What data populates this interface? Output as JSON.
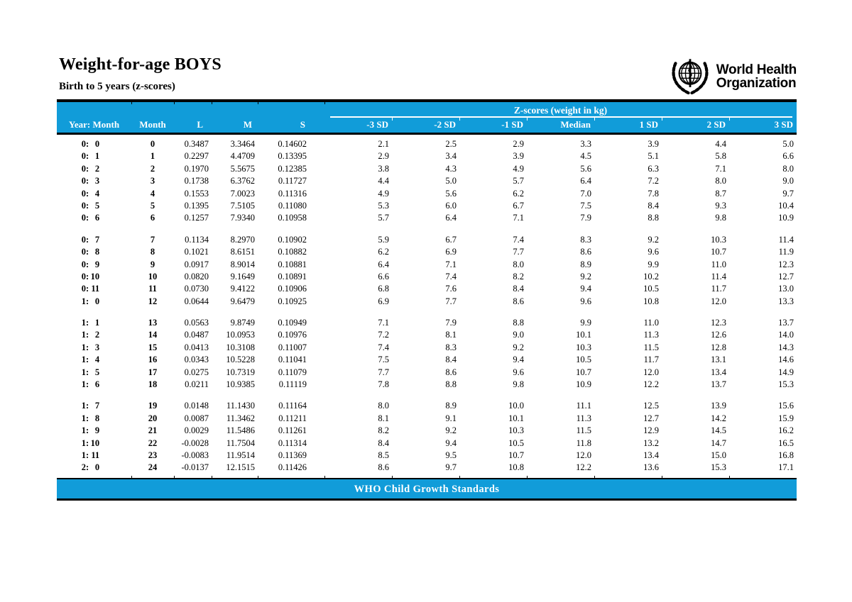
{
  "header": {
    "title": "Weight-for-age BOYS",
    "subtitle": "Birth to 5 years (z-scores)",
    "logo": {
      "line1": "World Health",
      "line2": "Organization"
    }
  },
  "table": {
    "group_header": "Z-scores (weight in kg)",
    "columns": [
      "Year: Month",
      "Month",
      "L",
      "M",
      "S",
      "-3 SD",
      "-2 SD",
      "-1 SD",
      "Median",
      "1 SD",
      "2 SD",
      "3 SD"
    ],
    "row_groups": [
      [
        [
          "0: 0",
          "0",
          "0.3487",
          "3.3464",
          "0.14602",
          "2.1",
          "2.5",
          "2.9",
          "3.3",
          "3.9",
          "4.4",
          "5.0"
        ],
        [
          "0: 1",
          "1",
          "0.2297",
          "4.4709",
          "0.13395",
          "2.9",
          "3.4",
          "3.9",
          "4.5",
          "5.1",
          "5.8",
          "6.6"
        ],
        [
          "0: 2",
          "2",
          "0.1970",
          "5.5675",
          "0.12385",
          "3.8",
          "4.3",
          "4.9",
          "5.6",
          "6.3",
          "7.1",
          "8.0"
        ],
        [
          "0: 3",
          "3",
          "0.1738",
          "6.3762",
          "0.11727",
          "4.4",
          "5.0",
          "5.7",
          "6.4",
          "7.2",
          "8.0",
          "9.0"
        ],
        [
          "0: 4",
          "4",
          "0.1553",
          "7.0023",
          "0.11316",
          "4.9",
          "5.6",
          "6.2",
          "7.0",
          "7.8",
          "8.7",
          "9.7"
        ],
        [
          "0: 5",
          "5",
          "0.1395",
          "7.5105",
          "0.11080",
          "5.3",
          "6.0",
          "6.7",
          "7.5",
          "8.4",
          "9.3",
          "10.4"
        ],
        [
          "0: 6",
          "6",
          "0.1257",
          "7.9340",
          "0.10958",
          "5.7",
          "6.4",
          "7.1",
          "7.9",
          "8.8",
          "9.8",
          "10.9"
        ]
      ],
      [
        [
          "0: 7",
          "7",
          "0.1134",
          "8.2970",
          "0.10902",
          "5.9",
          "6.7",
          "7.4",
          "8.3",
          "9.2",
          "10.3",
          "11.4"
        ],
        [
          "0: 8",
          "8",
          "0.1021",
          "8.6151",
          "0.10882",
          "6.2",
          "6.9",
          "7.7",
          "8.6",
          "9.6",
          "10.7",
          "11.9"
        ],
        [
          "0: 9",
          "9",
          "0.0917",
          "8.9014",
          "0.10881",
          "6.4",
          "7.1",
          "8.0",
          "8.9",
          "9.9",
          "11.0",
          "12.3"
        ],
        [
          "0:10",
          "10",
          "0.0820",
          "9.1649",
          "0.10891",
          "6.6",
          "7.4",
          "8.2",
          "9.2",
          "10.2",
          "11.4",
          "12.7"
        ],
        [
          "0:11",
          "11",
          "0.0730",
          "9.4122",
          "0.10906",
          "6.8",
          "7.6",
          "8.4",
          "9.4",
          "10.5",
          "11.7",
          "13.0"
        ],
        [
          "1: 0",
          "12",
          "0.0644",
          "9.6479",
          "0.10925",
          "6.9",
          "7.7",
          "8.6",
          "9.6",
          "10.8",
          "12.0",
          "13.3"
        ]
      ],
      [
        [
          "1: 1",
          "13",
          "0.0563",
          "9.8749",
          "0.10949",
          "7.1",
          "7.9",
          "8.8",
          "9.9",
          "11.0",
          "12.3",
          "13.7"
        ],
        [
          "1: 2",
          "14",
          "0.0487",
          "10.0953",
          "0.10976",
          "7.2",
          "8.1",
          "9.0",
          "10.1",
          "11.3",
          "12.6",
          "14.0"
        ],
        [
          "1: 3",
          "15",
          "0.0413",
          "10.3108",
          "0.11007",
          "7.4",
          "8.3",
          "9.2",
          "10.3",
          "11.5",
          "12.8",
          "14.3"
        ],
        [
          "1: 4",
          "16",
          "0.0343",
          "10.5228",
          "0.11041",
          "7.5",
          "8.4",
          "9.4",
          "10.5",
          "11.7",
          "13.1",
          "14.6"
        ],
        [
          "1: 5",
          "17",
          "0.0275",
          "10.7319",
          "0.11079",
          "7.7",
          "8.6",
          "9.6",
          "10.7",
          "12.0",
          "13.4",
          "14.9"
        ],
        [
          "1: 6",
          "18",
          "0.0211",
          "10.9385",
          "0.11119",
          "7.8",
          "8.8",
          "9.8",
          "10.9",
          "12.2",
          "13.7",
          "15.3"
        ]
      ],
      [
        [
          "1: 7",
          "19",
          "0.0148",
          "11.1430",
          "0.11164",
          "8.0",
          "8.9",
          "10.0",
          "11.1",
          "12.5",
          "13.9",
          "15.6"
        ],
        [
          "1: 8",
          "20",
          "0.0087",
          "11.3462",
          "0.11211",
          "8.1",
          "9.1",
          "10.1",
          "11.3",
          "12.7",
          "14.2",
          "15.9"
        ],
        [
          "1: 9",
          "21",
          "0.0029",
          "11.5486",
          "0.11261",
          "8.2",
          "9.2",
          "10.3",
          "11.5",
          "12.9",
          "14.5",
          "16.2"
        ],
        [
          "1:10",
          "22",
          "-0.0028",
          "11.7504",
          "0.11314",
          "8.4",
          "9.4",
          "10.5",
          "11.8",
          "13.2",
          "14.7",
          "16.5"
        ],
        [
          "1:11",
          "23",
          "-0.0083",
          "11.9514",
          "0.11369",
          "8.5",
          "9.5",
          "10.7",
          "12.0",
          "13.4",
          "15.0",
          "16.8"
        ],
        [
          "2: 0",
          "24",
          "-0.0137",
          "12.1515",
          "0.11426",
          "8.6",
          "9.7",
          "10.8",
          "12.2",
          "13.6",
          "15.3",
          "17.1"
        ]
      ]
    ]
  },
  "footer": {
    "text": "WHO Child Growth Standards"
  },
  "colors": {
    "accent_blue": "#119CD9",
    "border_black": "#000000",
    "header_text": "#FFFFFF"
  }
}
